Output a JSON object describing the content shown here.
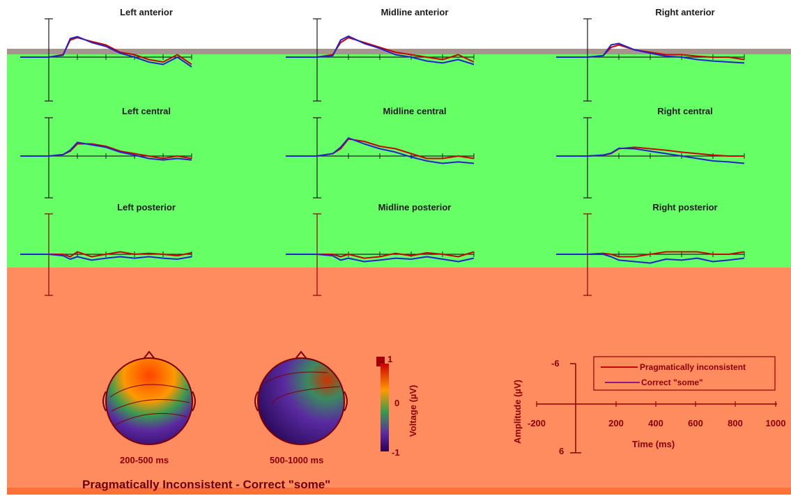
{
  "chart_data": {
    "type": "line",
    "panels": [
      {
        "title": "Left anterior"
      },
      {
        "title": "Midline anterior"
      },
      {
        "title": "Right anterior"
      },
      {
        "title": "Left central"
      },
      {
        "title": "Midline central"
      },
      {
        "title": "Right central"
      },
      {
        "title": "Left posterior"
      },
      {
        "title": "Midline posterior"
      },
      {
        "title": "Right posterior"
      }
    ],
    "series": [
      {
        "name": "Pragmatically inconsistent",
        "color": "#cc0000"
      },
      {
        "name": "Correct \"some\"",
        "color": "#2222cc"
      }
    ],
    "x": [
      -200,
      0,
      100,
      150,
      200,
      300,
      400,
      500,
      600,
      700,
      800,
      900,
      1000
    ],
    "traces": [
      [
        [
          0,
          0,
          0.5,
          3.5,
          4.0,
          3.2,
          2.5,
          1.0,
          0.5,
          -0.5,
          -1.0,
          0.5,
          -1.5
        ],
        [
          0,
          0,
          0.4,
          3.8,
          4.2,
          3.0,
          2.2,
          0.8,
          0.0,
          -1.0,
          -1.5,
          0.0,
          -2.0
        ]
      ],
      [
        [
          0,
          0,
          0.5,
          3.0,
          4.0,
          3.0,
          2.0,
          1.0,
          0.5,
          0.0,
          -0.5,
          0.5,
          -1.0
        ],
        [
          0,
          0,
          0.3,
          3.5,
          4.3,
          2.8,
          1.8,
          0.5,
          0.0,
          -0.8,
          -1.2,
          -0.5,
          -1.5
        ]
      ],
      [
        [
          0,
          0,
          0.3,
          2.0,
          2.5,
          1.5,
          1.0,
          0.5,
          0.5,
          0.2,
          0.0,
          0.0,
          -0.5
        ],
        [
          0,
          0,
          0.3,
          2.5,
          2.8,
          1.5,
          0.8,
          0.2,
          0.0,
          -0.5,
          -0.8,
          -1.0,
          -1.2
        ]
      ],
      [
        [
          0,
          0,
          0.3,
          1.0,
          2.5,
          2.5,
          2.0,
          1.0,
          0.5,
          0.0,
          -0.5,
          0.0,
          -0.5
        ],
        [
          0,
          0,
          0.3,
          1.2,
          2.8,
          2.3,
          1.8,
          0.8,
          0.2,
          -0.5,
          -0.8,
          -0.5,
          -0.8
        ]
      ],
      [
        [
          0,
          0,
          0.5,
          1.5,
          3.5,
          3.0,
          2.0,
          1.5,
          0.5,
          -0.5,
          -0.5,
          0.0,
          -0.5
        ],
        [
          0,
          0,
          0.5,
          1.8,
          3.7,
          2.5,
          1.5,
          0.8,
          -0.2,
          -1.0,
          -1.5,
          -1.2,
          -1.5
        ]
      ],
      [
        [
          0,
          0,
          0.2,
          0.5,
          1.5,
          1.8,
          1.5,
          1.2,
          0.8,
          0.5,
          0.2,
          0.0,
          0.0
        ],
        [
          0,
          0,
          0.2,
          0.6,
          1.6,
          1.5,
          1.0,
          0.5,
          0.0,
          -0.5,
          -1.0,
          -1.2,
          -1.5
        ]
      ],
      [
        [
          0,
          0,
          0.0,
          -0.5,
          0.5,
          -0.5,
          0.0,
          0.5,
          0.0,
          0.2,
          0.0,
          -0.3,
          0.3
        ],
        [
          0,
          0,
          -0.3,
          -1.0,
          -0.5,
          -1.2,
          -0.8,
          -0.5,
          -0.8,
          -0.5,
          -0.8,
          -1.0,
          -0.5
        ]
      ],
      [
        [
          0,
          0,
          0.0,
          -0.5,
          0.0,
          -0.8,
          -0.5,
          0.2,
          -0.3,
          0.3,
          0.0,
          -0.5,
          0.5
        ],
        [
          0,
          0,
          -0.3,
          -1.2,
          -0.8,
          -1.5,
          -1.2,
          -0.8,
          -1.0,
          -0.5,
          -1.0,
          -1.5,
          -0.8
        ]
      ],
      [
        [
          0,
          0,
          0.2,
          0.0,
          -0.5,
          -0.5,
          0.0,
          0.5,
          0.5,
          0.5,
          0.0,
          0.0,
          0.5
        ],
        [
          0,
          0,
          0.0,
          -0.5,
          -1.2,
          -1.5,
          -1.8,
          -1.0,
          -1.2,
          -0.8,
          -1.5,
          -1.2,
          -0.8
        ]
      ]
    ],
    "axis_legend": {
      "ylabel": "Amplitude (µV)",
      "xlabel": "Time (ms)",
      "y_top_label": "-6",
      "y_bottom_label": "6",
      "x_ticks": [
        "-200",
        "200",
        "400",
        "600",
        "800",
        "1000"
      ]
    },
    "topomaps": [
      {
        "caption": "200-500 ms"
      },
      {
        "caption": "500-1000 ms"
      }
    ],
    "colorbar": {
      "label": "Voltage (µV)",
      "ticks": [
        "1",
        "0",
        "-1"
      ]
    },
    "bottom_title": "Pragmatically Inconsistent - Correct \"some\""
  }
}
